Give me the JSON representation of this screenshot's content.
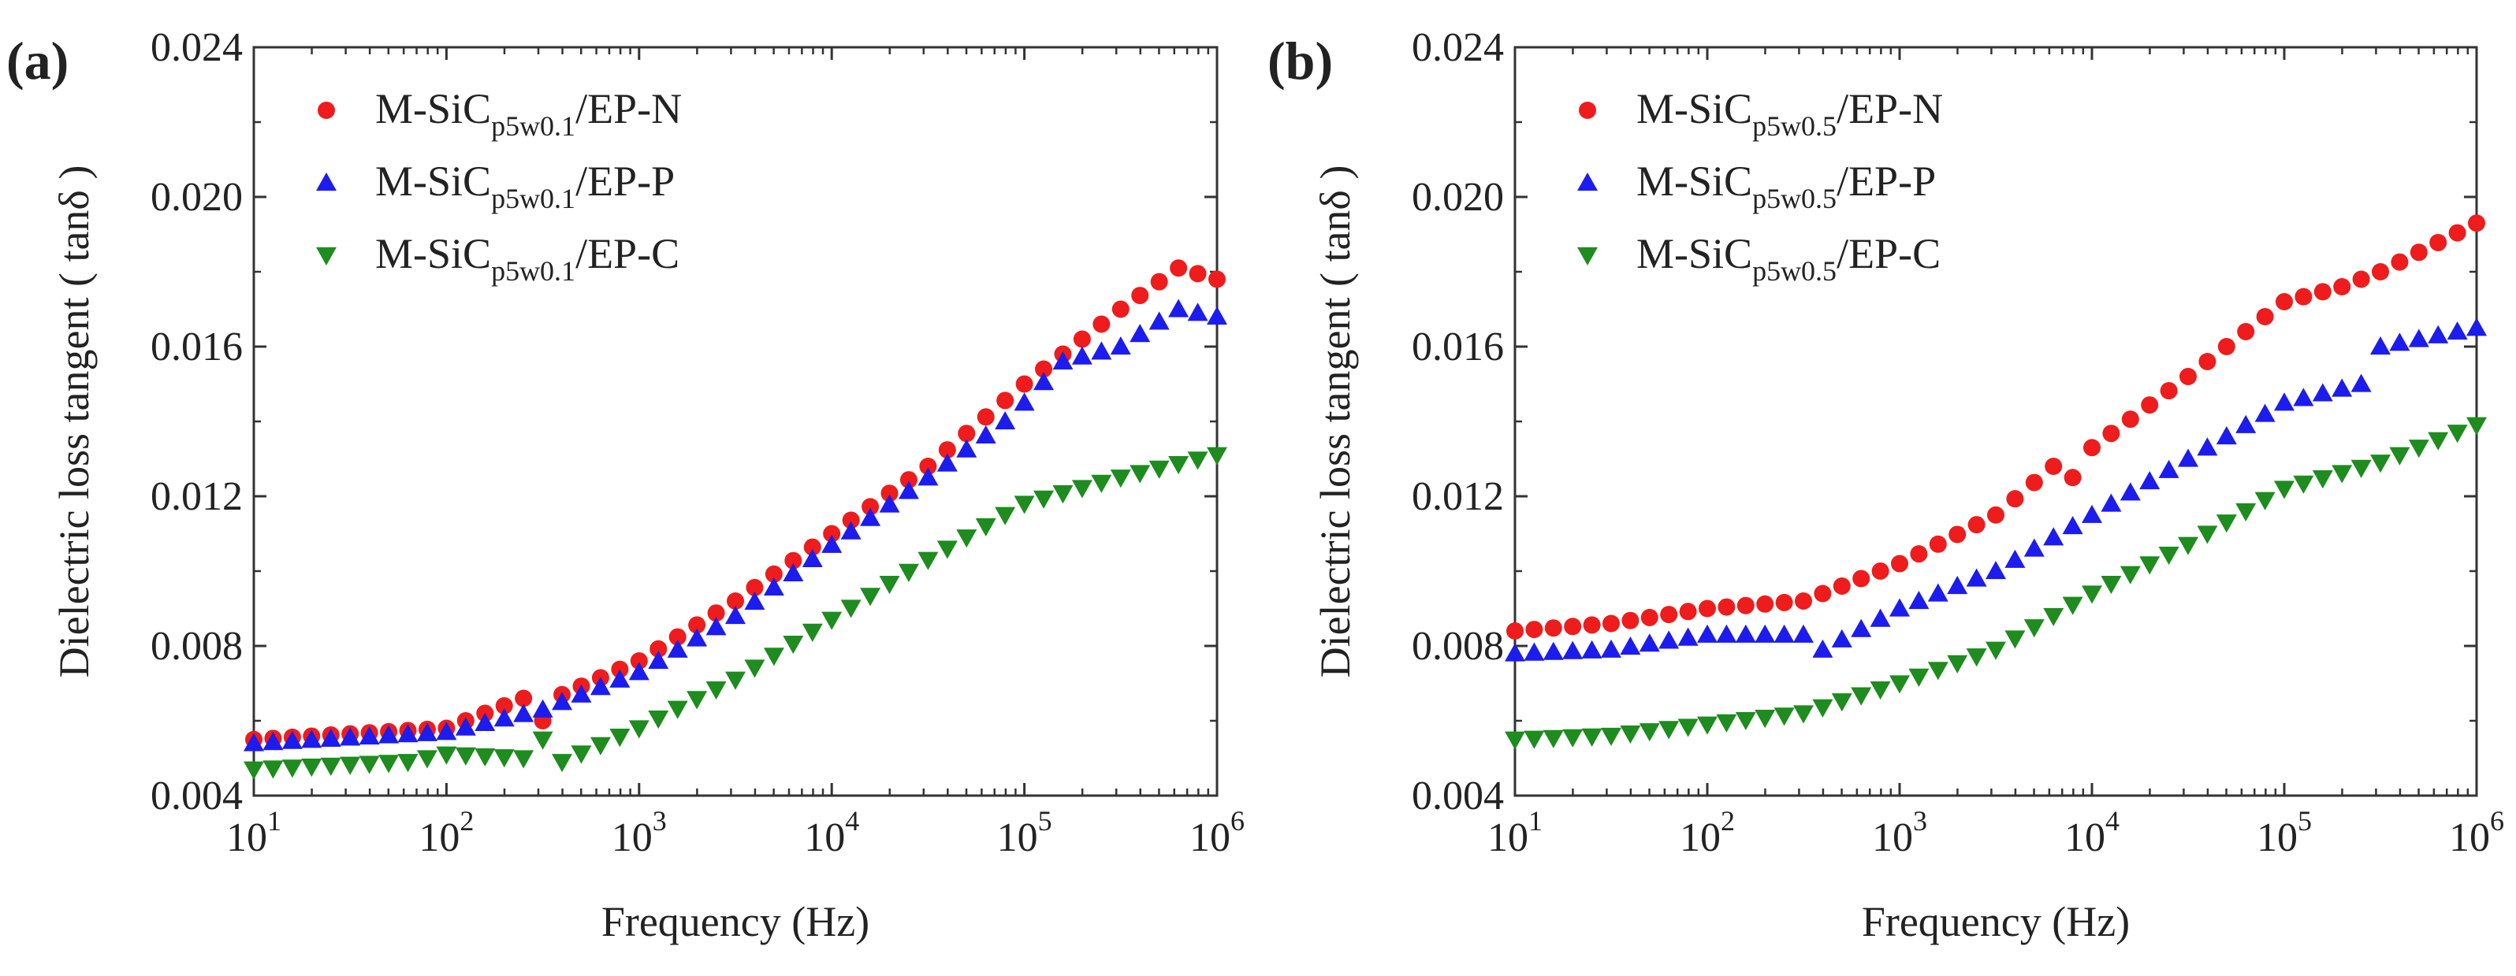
{
  "chart_data": [
    {
      "panel_label": "(a)",
      "type": "scatter",
      "xscale": "log",
      "xlabel": "Frequency (Hz)",
      "ylabel": "Dielectric loss tangent ( tanδ )",
      "xlim": [
        10,
        1000000
      ],
      "ylim": [
        0.004,
        0.024
      ],
      "xticks": [
        {
          "value": 10,
          "base": "10",
          "exp": "1"
        },
        {
          "value": 100,
          "base": "10",
          "exp": "2"
        },
        {
          "value": 1000,
          "base": "10",
          "exp": "3"
        },
        {
          "value": 10000,
          "base": "10",
          "exp": "4"
        },
        {
          "value": 100000,
          "base": "10",
          "exp": "5"
        },
        {
          "value": 1000000,
          "base": "10",
          "exp": "6"
        }
      ],
      "yticks": [
        "0.004",
        "0.008",
        "0.012",
        "0.016",
        "0.020",
        "0.024"
      ],
      "legend_position": "top-left",
      "series": [
        {
          "name": "M-SiCp5w0.1/EP-N",
          "legend": {
            "prefix": "M-SiC",
            "sub": "p5w0.1",
            "suffix": "/EP-N"
          },
          "marker": "circle",
          "color": "#ee1c1c",
          "anchors": [
            [
              1,
              0.0055
            ],
            [
              2,
              0.0058
            ],
            [
              2.4,
              0.0066
            ],
            [
              2.5,
              0.006
            ],
            [
              2.6,
              0.0067
            ],
            [
              3,
              0.0076
            ],
            [
              3.5,
              0.0092
            ],
            [
              4,
              0.011
            ],
            [
              4.5,
              0.0128
            ],
            [
              5,
              0.015
            ],
            [
              5.5,
              0.017
            ],
            [
              5.8,
              0.0181
            ],
            [
              6,
              0.0178
            ]
          ]
        },
        {
          "name": "M-SiCp5w0.1/EP-P",
          "legend": {
            "prefix": "M-SiC",
            "sub": "p5w0.1",
            "suffix": "/EP-P"
          },
          "marker": "triangle-up",
          "color": "#1c1cee",
          "anchors": [
            [
              1,
              0.0054
            ],
            [
              2,
              0.0057
            ],
            [
              2.5,
              0.0063
            ],
            [
              3,
              0.0073
            ],
            [
              3.5,
              0.0088
            ],
            [
              4,
              0.0107
            ],
            [
              4.5,
              0.0125
            ],
            [
              4.9,
              0.014
            ],
            [
              5,
              0.0145
            ],
            [
              5.2,
              0.0156
            ],
            [
              5.5,
              0.016
            ],
            [
              5.8,
              0.017
            ],
            [
              6,
              0.0168
            ]
          ]
        },
        {
          "name": "M-SiCp5w0.1/EP-C",
          "legend": {
            "prefix": "M-SiC",
            "sub": "p5w0.1",
            "suffix": "/EP-C"
          },
          "marker": "triangle-down",
          "color": "#1e8c1e",
          "anchors": [
            [
              1,
              0.0047
            ],
            [
              1.8,
              0.0049
            ],
            [
              2,
              0.0051
            ],
            [
              2.4,
              0.005
            ],
            [
              2.5,
              0.0055
            ],
            [
              2.6,
              0.0049
            ],
            [
              3,
              0.0058
            ],
            [
              3.5,
              0.0071
            ],
            [
              4,
              0.0087
            ],
            [
              4.5,
              0.0103
            ],
            [
              5,
              0.0118
            ],
            [
              5.5,
              0.0125
            ],
            [
              6,
              0.0131
            ]
          ]
        }
      ]
    },
    {
      "panel_label": "(b)",
      "type": "scatter",
      "xscale": "log",
      "xlabel": "Frequency (Hz)",
      "ylabel": "Dielectric loss tangent ( tanδ )",
      "xlim": [
        10,
        1000000
      ],
      "ylim": [
        0.004,
        0.024
      ],
      "xticks": [
        {
          "value": 10,
          "base": "10",
          "exp": "1"
        },
        {
          "value": 100,
          "base": "10",
          "exp": "2"
        },
        {
          "value": 1000,
          "base": "10",
          "exp": "3"
        },
        {
          "value": 10000,
          "base": "10",
          "exp": "4"
        },
        {
          "value": 100000,
          "base": "10",
          "exp": "5"
        },
        {
          "value": 1000000,
          "base": "10",
          "exp": "6"
        }
      ],
      "yticks": [
        "0.004",
        "0.008",
        "0.012",
        "0.016",
        "0.020",
        "0.024"
      ],
      "legend_position": "top-left",
      "series": [
        {
          "name": "M-SiCp5w0.5/EP-N",
          "legend": {
            "prefix": "M-SiC",
            "sub": "p5w0.5",
            "suffix": "/EP-N"
          },
          "marker": "circle",
          "color": "#ee1c1c",
          "anchors": [
            [
              1,
              0.0084
            ],
            [
              1.5,
              0.0086
            ],
            [
              2,
              0.009
            ],
            [
              2.5,
              0.0092
            ],
            [
              3,
              0.0102
            ],
            [
              3.5,
              0.0115
            ],
            [
              3.8,
              0.0128
            ],
            [
              3.9,
              0.0125
            ],
            [
              4,
              0.0133
            ],
            [
              4.5,
              0.0152
            ],
            [
              5,
              0.0172
            ],
            [
              5.3,
              0.0176
            ],
            [
              5.5,
              0.018
            ],
            [
              6,
              0.0193
            ]
          ]
        },
        {
          "name": "M-SiCp5w0.5/EP-P",
          "legend": {
            "prefix": "M-SiC",
            "sub": "p5w0.5",
            "suffix": "/EP-P"
          },
          "marker": "triangle-up",
          "color": "#1c1cee",
          "anchors": [
            [
              1,
              0.0078
            ],
            [
              1.5,
              0.0079
            ],
            [
              2,
              0.0083
            ],
            [
              2.5,
              0.0083
            ],
            [
              2.6,
              0.0079
            ],
            [
              3,
              0.009
            ],
            [
              3.5,
              0.01
            ],
            [
              4,
              0.0115
            ],
            [
              4.5,
              0.013
            ],
            [
              5,
              0.0145
            ],
            [
              5.4,
              0.015
            ],
            [
              5.5,
              0.016
            ],
            [
              6,
              0.0165
            ]
          ]
        },
        {
          "name": "M-SiCp5w0.5/EP-C",
          "legend": {
            "prefix": "M-SiC",
            "sub": "p5w0.5",
            "suffix": "/EP-C"
          },
          "marker": "triangle-down",
          "color": "#1e8c1e",
          "anchors": [
            [
              1,
              0.0055
            ],
            [
              1.5,
              0.0056
            ],
            [
              2,
              0.0059
            ],
            [
              2.5,
              0.0062
            ],
            [
              3,
              0.007
            ],
            [
              3.5,
              0.0079
            ],
            [
              4,
              0.0094
            ],
            [
              4.5,
              0.0107
            ],
            [
              5,
              0.0122
            ],
            [
              5.5,
              0.0129
            ],
            [
              6,
              0.0139
            ]
          ]
        }
      ]
    }
  ]
}
